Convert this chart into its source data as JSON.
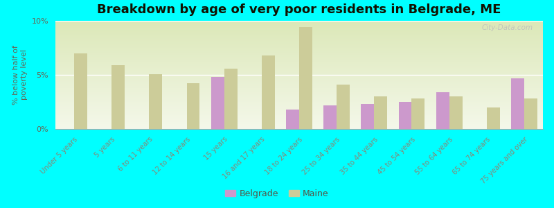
{
  "title": "Breakdown by age of very poor residents in Belgrade, ME",
  "ylabel": "% below half of\npoverty level",
  "categories": [
    "Under 5 years",
    "5 years",
    "6 to 11 years",
    "12 to 14 years",
    "15 years",
    "16 and 17 years",
    "18 to 24 years",
    "25 to 34 years",
    "35 to 44 years",
    "45 to 54 years",
    "55 to 64 years",
    "65 to 74 years",
    "75 years and over"
  ],
  "belgrade_values": [
    0,
    0,
    0,
    0,
    4.8,
    0,
    1.8,
    2.2,
    2.3,
    2.5,
    3.4,
    0,
    4.7
  ],
  "maine_values": [
    7.0,
    5.9,
    5.05,
    4.2,
    5.55,
    6.8,
    9.4,
    4.1,
    3.0,
    2.8,
    3.0,
    2.0,
    2.8
  ],
  "belgrade_color": "#cc99cc",
  "maine_color": "#cccc99",
  "background_color": "#00ffff",
  "ylim": [
    0,
    10
  ],
  "yticks": [
    0,
    5,
    10
  ],
  "ytick_labels": [
    "0%",
    "5%",
    "10%"
  ],
  "bar_width": 0.35,
  "title_fontsize": 13,
  "watermark": "City-Data.com"
}
